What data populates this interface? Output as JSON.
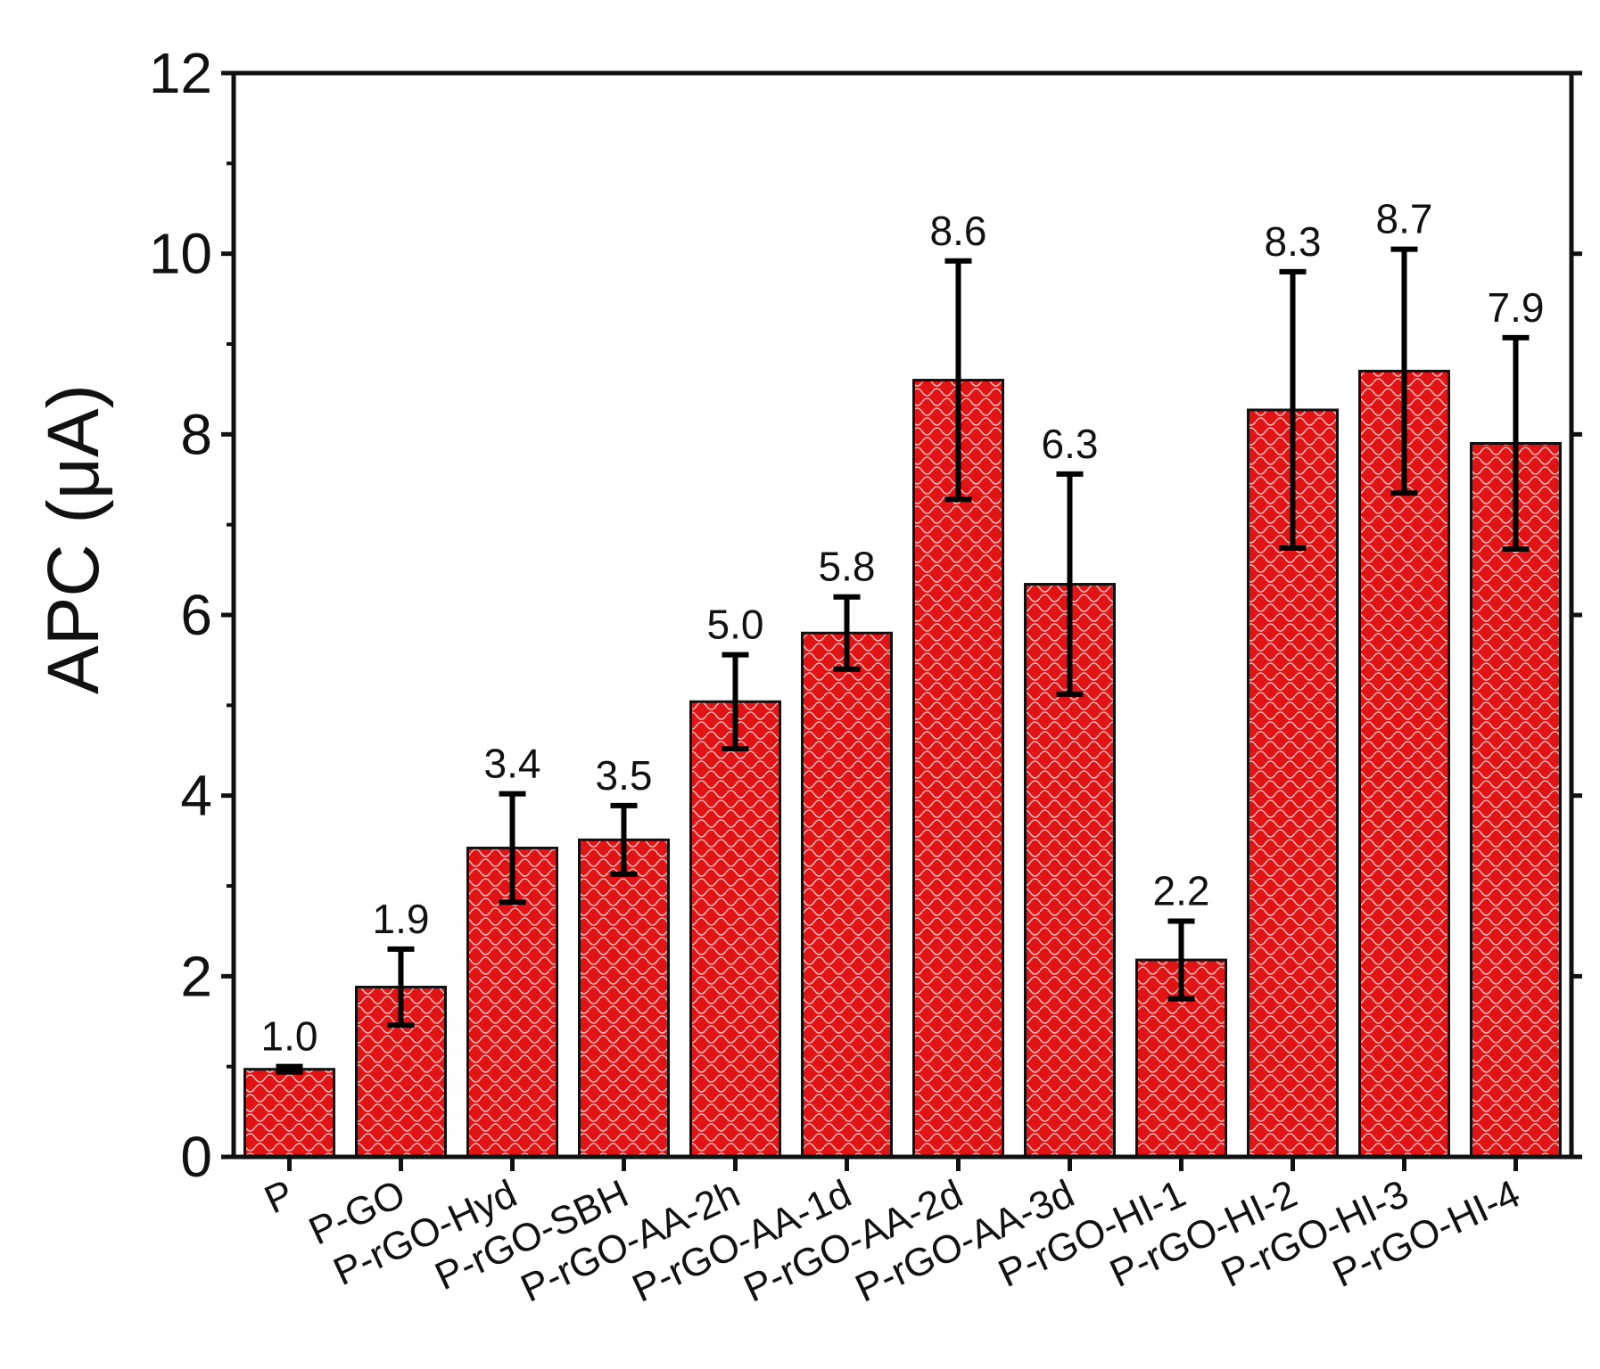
{
  "chart_data": {
    "type": "bar",
    "ylabel": "APC (μA)",
    "xlabel": "",
    "ylim": [
      0,
      12
    ],
    "yticks": [
      "0",
      "2",
      "4",
      "6",
      "8",
      "10",
      "12"
    ],
    "categories": [
      "P",
      "P-GO",
      "P-rGO-Hyd",
      "P-rGO-SBH",
      "P-rGO-AA-2h",
      "P-rGO-AA-1d",
      "P-rGO-AA-2d",
      "P-rGO-AA-3d",
      "P-rGO-HI-1",
      "P-rGO-HI-2",
      "P-rGO-HI-3",
      "P-rGO-HI-4"
    ],
    "values": [
      0.97,
      1.88,
      3.42,
      3.51,
      5.04,
      5.8,
      8.6,
      6.34,
      2.18,
      8.27,
      8.7,
      7.9
    ],
    "errors": [
      0.03,
      0.42,
      0.6,
      0.38,
      0.52,
      0.4,
      1.32,
      1.22,
      0.43,
      1.53,
      1.35,
      1.17
    ],
    "data_labels": [
      "1.0",
      "1.9",
      "3.4",
      "3.5",
      "5.0",
      "5.8",
      "8.6",
      "6.3",
      "2.2",
      "8.3",
      "8.7",
      "7.9"
    ],
    "bar_color": "#e01414",
    "pattern_color": "#f6b3b3",
    "grid": false,
    "legend": "none"
  }
}
